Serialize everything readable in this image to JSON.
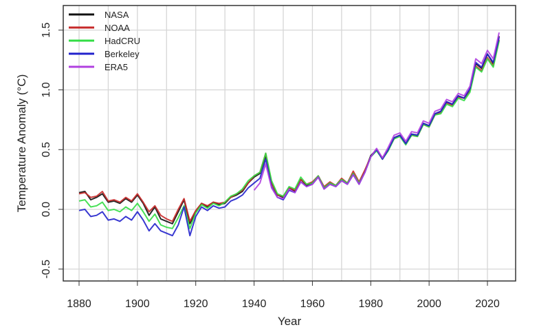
{
  "chart_data": {
    "type": "line",
    "title": "",
    "xlabel": "Year",
    "ylabel": "Temperature Anomaly (°C)",
    "xlim": [
      1875,
      2030
    ],
    "ylim": [
      -0.65,
      1.65
    ],
    "xticks": [
      1880,
      1900,
      1920,
      1940,
      1960,
      1980,
      2000,
      2020
    ],
    "yticks": [
      -0.5,
      0.0,
      0.5,
      1.0,
      1.5
    ],
    "ytick_labels": [
      "-0.5",
      "0.0",
      "0.5",
      "1.0",
      "1.5"
    ],
    "grid": true,
    "legend_position": "top-left",
    "x": [
      1880,
      1882,
      1884,
      1886,
      1888,
      1890,
      1892,
      1894,
      1896,
      1898,
      1900,
      1902,
      1904,
      1906,
      1908,
      1910,
      1912,
      1914,
      1916,
      1918,
      1920,
      1922,
      1924,
      1926,
      1928,
      1930,
      1932,
      1934,
      1936,
      1938,
      1940,
      1942,
      1944,
      1946,
      1948,
      1950,
      1952,
      1954,
      1956,
      1958,
      1960,
      1962,
      1964,
      1966,
      1968,
      1970,
      1972,
      1974,
      1976,
      1978,
      1980,
      1982,
      1984,
      1986,
      1988,
      1990,
      1992,
      1994,
      1996,
      1998,
      2000,
      2002,
      2004,
      2006,
      2008,
      2010,
      2012,
      2014,
      2016,
      2018,
      2020,
      2022,
      2024
    ],
    "series": [
      {
        "name": "NASA",
        "color": "#111111",
        "values": [
          0.14,
          0.15,
          0.08,
          0.1,
          0.13,
          0.06,
          0.07,
          0.05,
          0.09,
          0.06,
          0.12,
          0.05,
          -0.05,
          0.02,
          -0.08,
          -0.1,
          -0.12,
          -0.02,
          0.08,
          -0.12,
          -0.02,
          0.05,
          0.02,
          0.06,
          0.04,
          0.05,
          0.1,
          0.12,
          0.15,
          0.22,
          0.27,
          0.3,
          0.45,
          0.22,
          0.12,
          0.1,
          0.18,
          0.15,
          0.25,
          0.2,
          0.22,
          0.28,
          0.18,
          0.22,
          0.2,
          0.25,
          0.22,
          0.3,
          0.22,
          0.32,
          0.45,
          0.5,
          0.42,
          0.5,
          0.6,
          0.62,
          0.55,
          0.63,
          0.62,
          0.72,
          0.7,
          0.8,
          0.82,
          0.9,
          0.88,
          0.95,
          0.93,
          1.0,
          1.22,
          1.18,
          1.3,
          1.22,
          1.45
        ]
      },
      {
        "name": "NOAA",
        "color": "#c62828",
        "values": [
          0.13,
          0.14,
          0.1,
          0.11,
          0.15,
          0.07,
          0.08,
          0.06,
          0.1,
          0.07,
          0.13,
          0.06,
          -0.02,
          0.03,
          -0.05,
          -0.08,
          -0.1,
          0.0,
          0.09,
          -0.1,
          -0.01,
          0.05,
          0.03,
          0.06,
          0.05,
          0.06,
          0.1,
          0.13,
          0.16,
          0.22,
          0.28,
          0.31,
          0.47,
          0.22,
          0.12,
          0.11,
          0.18,
          0.16,
          0.25,
          0.21,
          0.23,
          0.28,
          0.19,
          0.23,
          0.2,
          0.26,
          0.22,
          0.32,
          0.23,
          0.33,
          0.44,
          0.5,
          0.43,
          0.5,
          0.59,
          0.62,
          0.55,
          0.62,
          0.61,
          0.71,
          0.69,
          0.79,
          0.81,
          0.89,
          0.87,
          0.94,
          0.93,
          0.99,
          1.2,
          1.16,
          1.27,
          1.2,
          1.42
        ]
      },
      {
        "name": "HadCRU",
        "color": "#33dd44",
        "values": [
          0.07,
          0.08,
          0.02,
          0.03,
          0.06,
          -0.01,
          0.0,
          -0.02,
          0.02,
          -0.01,
          0.05,
          -0.02,
          -0.1,
          -0.04,
          -0.13,
          -0.15,
          -0.16,
          -0.07,
          0.03,
          -0.16,
          -0.03,
          0.04,
          0.01,
          0.05,
          0.03,
          0.06,
          0.11,
          0.13,
          0.17,
          0.24,
          0.28,
          0.31,
          0.47,
          0.24,
          0.13,
          0.11,
          0.19,
          0.17,
          0.27,
          0.21,
          0.22,
          0.28,
          0.18,
          0.22,
          0.2,
          0.25,
          0.22,
          0.3,
          0.22,
          0.31,
          0.44,
          0.49,
          0.42,
          0.49,
          0.59,
          0.61,
          0.54,
          0.62,
          0.61,
          0.71,
          0.69,
          0.79,
          0.8,
          0.88,
          0.86,
          0.93,
          0.91,
          0.98,
          1.19,
          1.15,
          1.26,
          1.19,
          1.41
        ]
      },
      {
        "name": "Berkeley",
        "color": "#2222cc",
        "values": [
          -0.01,
          0.0,
          -0.06,
          -0.05,
          -0.02,
          -0.09,
          -0.08,
          -0.1,
          -0.06,
          -0.09,
          -0.02,
          -0.09,
          -0.18,
          -0.12,
          -0.18,
          -0.2,
          -0.22,
          -0.13,
          0.02,
          -0.22,
          -0.06,
          0.02,
          -0.01,
          0.03,
          0.01,
          0.02,
          0.07,
          0.09,
          0.12,
          0.18,
          0.22,
          0.26,
          0.42,
          0.19,
          0.1,
          0.08,
          0.16,
          0.14,
          0.23,
          0.19,
          0.21,
          0.27,
          0.17,
          0.21,
          0.19,
          0.24,
          0.21,
          0.29,
          0.21,
          0.31,
          0.44,
          0.5,
          0.42,
          0.5,
          0.6,
          0.62,
          0.55,
          0.63,
          0.62,
          0.72,
          0.7,
          0.8,
          0.82,
          0.9,
          0.88,
          0.95,
          0.93,
          1.01,
          1.23,
          1.19,
          1.3,
          1.23,
          1.44
        ]
      },
      {
        "name": "ERA5",
        "color": "#b040e0",
        "values": [
          null,
          null,
          null,
          null,
          null,
          null,
          null,
          null,
          null,
          null,
          null,
          null,
          null,
          null,
          null,
          null,
          null,
          null,
          null,
          null,
          null,
          null,
          null,
          null,
          null,
          null,
          null,
          null,
          null,
          null,
          0.16,
          0.22,
          0.38,
          0.18,
          0.1,
          0.09,
          0.17,
          0.14,
          0.23,
          0.19,
          0.21,
          0.27,
          0.17,
          0.21,
          0.19,
          0.24,
          0.21,
          0.29,
          0.21,
          0.31,
          0.44,
          0.51,
          0.43,
          0.52,
          0.62,
          0.64,
          0.57,
          0.65,
          0.64,
          0.74,
          0.72,
          0.82,
          0.84,
          0.92,
          0.9,
          0.97,
          0.95,
          1.03,
          1.26,
          1.22,
          1.33,
          1.26,
          1.48
        ]
      }
    ]
  }
}
